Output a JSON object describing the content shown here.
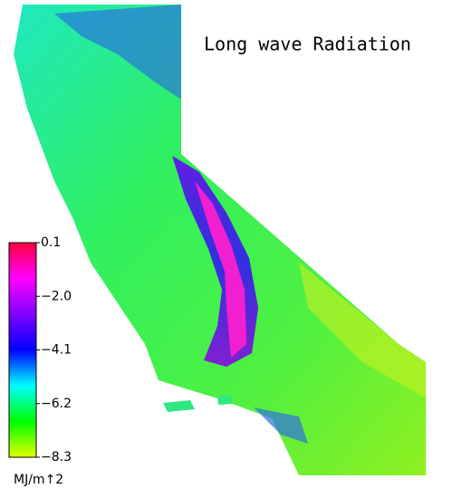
{
  "title": "Long wave Radiation",
  "colorbar": {
    "lim": [
      -8.3,
      0.1
    ],
    "ticks": [
      {
        "value": -8.3,
        "label": "−8.3"
      },
      {
        "value": -6.2,
        "label": "−6.2"
      },
      {
        "value": -4.1,
        "label": "−4.1"
      },
      {
        "value": -2.0,
        "label": "−2.0"
      },
      0.1
    ],
    "colors": [
      "#e0ff00",
      "#00ff00",
      "#00ffff",
      "#0000ff",
      "#8000ff",
      "#ff00ff",
      "#ff0040"
    ],
    "unit_label": "MJ/m↑2"
  }
}
